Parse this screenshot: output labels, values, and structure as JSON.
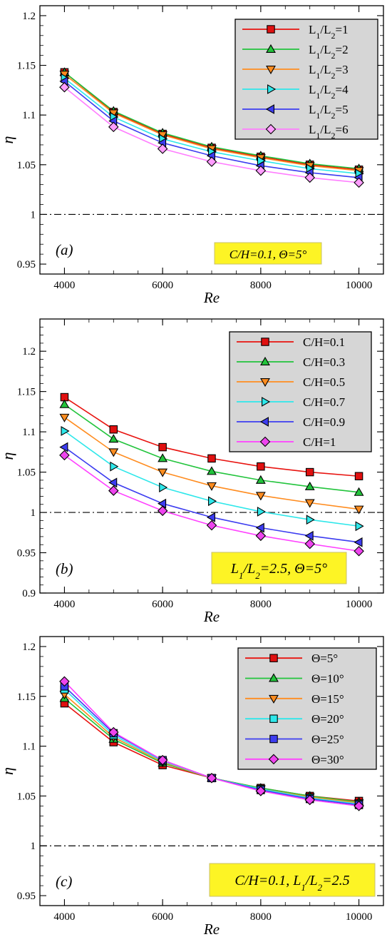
{
  "chart_data": [
    {
      "type": "line",
      "panel_label": "(a)",
      "annotation": "C/H=0.1, Θ=5°",
      "xlabel": "Re",
      "ylabel": "η",
      "x": [
        4000,
        5000,
        6000,
        7000,
        8000,
        9000,
        10000
      ],
      "xlim": [
        3500,
        10500
      ],
      "ylim": [
        0.94,
        1.21
      ],
      "xticks": [
        "4000",
        "6000",
        "8000",
        "10000"
      ],
      "yticks": [
        "0.95",
        "1",
        "1.05",
        "1.1",
        "1.15",
        "1.2"
      ],
      "reference_line": 1.0,
      "legend_position": "top-right",
      "series": [
        {
          "name": "L1/L2=1",
          "color": "#e8130f",
          "marker": "square",
          "marker_fill": "#e01010",
          "values": [
            1.143,
            1.103,
            1.081,
            1.067,
            1.058,
            1.05,
            1.045
          ]
        },
        {
          "name": "L1/L2=2",
          "color": "#22c43c",
          "marker": "triangle-up",
          "marker_fill": "#22c43c",
          "values": [
            1.143,
            1.104,
            1.082,
            1.068,
            1.059,
            1.051,
            1.046
          ]
        },
        {
          "name": "L1/L2=3",
          "color": "#ff8c1f",
          "marker": "triangle-down",
          "marker_fill": "#ff8c1f",
          "values": [
            1.141,
            1.102,
            1.08,
            1.066,
            1.057,
            1.049,
            1.044
          ]
        },
        {
          "name": "L1/L2=4",
          "color": "#2ee7ea",
          "marker": "triangle-right",
          "marker_fill": "#2ee7ea",
          "values": [
            1.137,
            1.098,
            1.076,
            1.063,
            1.054,
            1.046,
            1.041
          ]
        },
        {
          "name": "L1/L2=5",
          "color": "#3c3cf0",
          "marker": "triangle-left",
          "marker_fill": "#3c3cf0",
          "values": [
            1.134,
            1.094,
            1.072,
            1.059,
            1.049,
            1.042,
            1.037
          ]
        },
        {
          "name": "L1/L2=6",
          "color": "#ff7dff",
          "marker": "diamond",
          "marker_fill": "#ff9dff",
          "values": [
            1.128,
            1.088,
            1.066,
            1.053,
            1.044,
            1.037,
            1.032
          ]
        }
      ]
    },
    {
      "type": "line",
      "panel_label": "(b)",
      "annotation": "L1/L2=2.5, Θ=5°",
      "xlabel": "Re",
      "ylabel": "η",
      "x": [
        4000,
        5000,
        6000,
        7000,
        8000,
        9000,
        10000
      ],
      "xlim": [
        3500,
        10500
      ],
      "ylim": [
        0.9,
        1.24
      ],
      "xticks": [
        "4000",
        "6000",
        "8000",
        "10000"
      ],
      "yticks": [
        "0.9",
        "0.95",
        "1",
        "1.05",
        "1.1",
        "1.15",
        "1.2"
      ],
      "reference_line": 1.0,
      "legend_position": "top-right",
      "series": [
        {
          "name": "C/H=0.1",
          "color": "#e8130f",
          "marker": "square",
          "marker_fill": "#e01010",
          "values": [
            1.143,
            1.103,
            1.081,
            1.067,
            1.057,
            1.05,
            1.045
          ]
        },
        {
          "name": "C/H=0.3",
          "color": "#22c43c",
          "marker": "triangle-up",
          "marker_fill": "#22c43c",
          "values": [
            1.134,
            1.091,
            1.067,
            1.051,
            1.04,
            1.032,
            1.025
          ]
        },
        {
          "name": "C/H=0.5",
          "color": "#ff8c1f",
          "marker": "triangle-down",
          "marker_fill": "#ff8c1f",
          "values": [
            1.118,
            1.075,
            1.05,
            1.033,
            1.021,
            1.012,
            1.004
          ]
        },
        {
          "name": "C/H=0.7",
          "color": "#2ee7ea",
          "marker": "triangle-right",
          "marker_fill": "#2ee7ea",
          "values": [
            1.101,
            1.057,
            1.031,
            1.014,
            1.001,
            0.991,
            0.983
          ]
        },
        {
          "name": "C/H=0.9",
          "color": "#3c3cf0",
          "marker": "triangle-left",
          "marker_fill": "#3c3cf0",
          "values": [
            1.081,
            1.037,
            1.011,
            0.994,
            0.981,
            0.971,
            0.963
          ]
        },
        {
          "name": "C/H=1",
          "color": "#ff40ff",
          "marker": "diamond",
          "marker_fill": "#ee44ee",
          "values": [
            1.071,
            1.027,
            1.002,
            0.984,
            0.971,
            0.961,
            0.952
          ]
        }
      ]
    },
    {
      "type": "line",
      "panel_label": "(c)",
      "annotation": "C/H=0.1, L1/L2=2.5",
      "xlabel": "Re",
      "ylabel": "η",
      "x": [
        4000,
        5000,
        6000,
        7000,
        8000,
        9000,
        10000
      ],
      "xlim": [
        3500,
        10500
      ],
      "ylim": [
        0.94,
        1.21
      ],
      "xticks": [
        "4000",
        "6000",
        "8000",
        "10000"
      ],
      "yticks": [
        "0.95",
        "1",
        "1.05",
        "1.1",
        "1.15",
        "1.2"
      ],
      "reference_line": 1.0,
      "legend_position": "top-right",
      "series": [
        {
          "name": "Θ=5°",
          "color": "#e8130f",
          "marker": "square",
          "marker_fill": "#e01010",
          "values": [
            1.143,
            1.104,
            1.081,
            1.068,
            1.058,
            1.05,
            1.045
          ]
        },
        {
          "name": "Θ=10°",
          "color": "#22c43c",
          "marker": "triangle-up",
          "marker_fill": "#22c43c",
          "values": [
            1.148,
            1.107,
            1.083,
            1.068,
            1.058,
            1.05,
            1.044
          ]
        },
        {
          "name": "Θ=15°",
          "color": "#ff8c1f",
          "marker": "triangle-down",
          "marker_fill": "#ff8c1f",
          "values": [
            1.152,
            1.109,
            1.084,
            1.068,
            1.057,
            1.049,
            1.043
          ]
        },
        {
          "name": "Θ=20°",
          "color": "#2ee7ea",
          "marker": "square",
          "marker_fill": "#2ee7ea",
          "values": [
            1.157,
            1.111,
            1.085,
            1.068,
            1.057,
            1.048,
            1.042
          ]
        },
        {
          "name": "Θ=25°",
          "color": "#3c3cf0",
          "marker": "square",
          "marker_fill": "#3c3cf0",
          "values": [
            1.16,
            1.113,
            1.086,
            1.068,
            1.056,
            1.047,
            1.041
          ]
        },
        {
          "name": "Θ=30°",
          "color": "#ff40ff",
          "marker": "diamond",
          "marker_fill": "#ee44ee",
          "values": [
            1.165,
            1.114,
            1.086,
            1.068,
            1.055,
            1.046,
            1.04
          ]
        }
      ]
    }
  ]
}
